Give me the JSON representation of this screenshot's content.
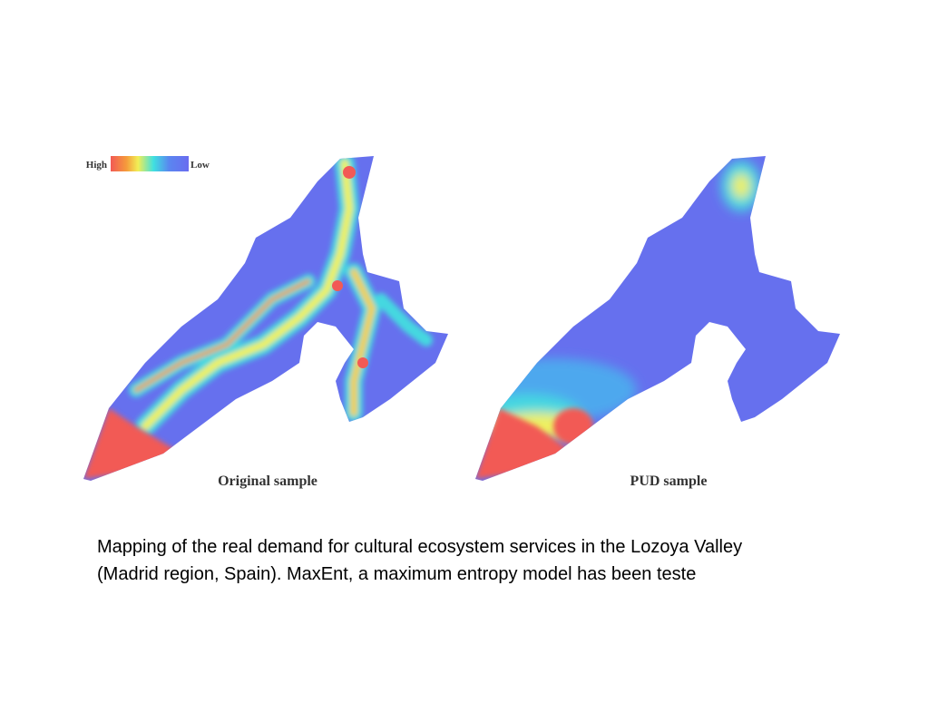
{
  "legend": {
    "high": "High",
    "low": "Low"
  },
  "panels": [
    {
      "label": "Original sample"
    },
    {
      "label": "PUD sample"
    }
  ],
  "caption": {
    "lines": [
      "Mapping of the real demand for cultural ecosystem services in the Lozoya Valley",
      "(Madrid region, Spain). MaxEnt, a maximum entropy model has been teste"
    ]
  }
}
